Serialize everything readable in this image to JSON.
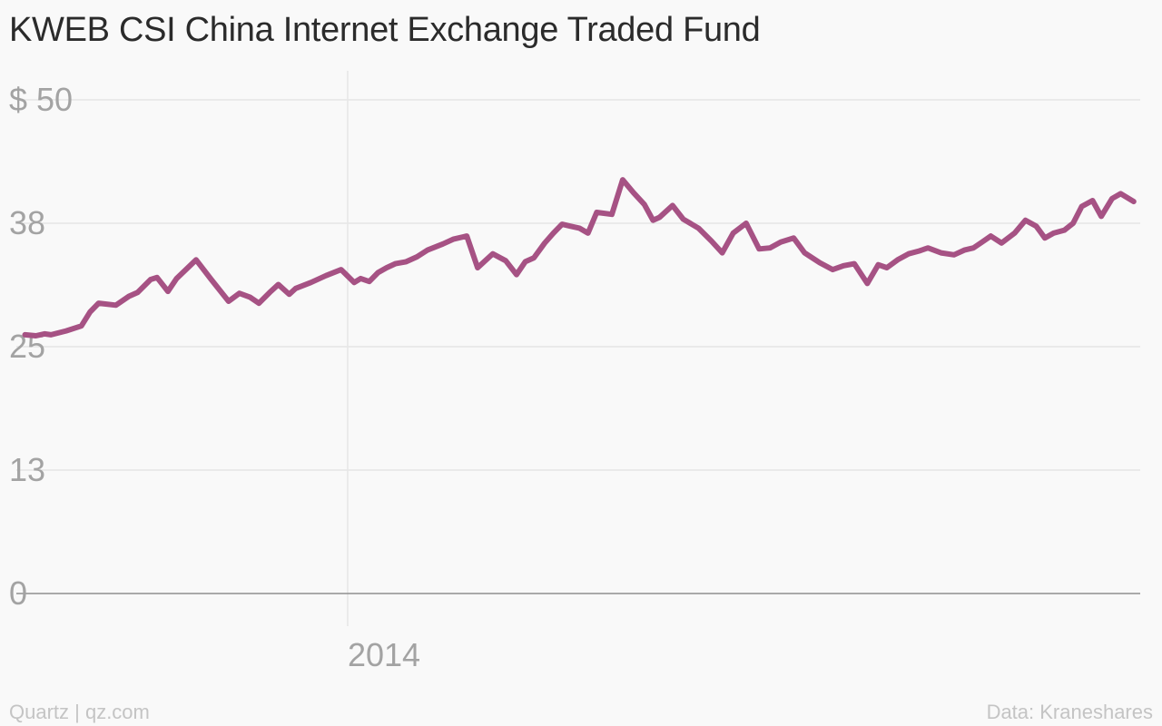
{
  "footer": {
    "left": "Quartz | qz.com",
    "right": "Data: Kraneshares"
  },
  "chart_data": {
    "type": "line",
    "title": "KWEB CSI China Internet Exchange Traded Fund",
    "xlabel": "",
    "ylabel": "",
    "ylim": [
      0,
      50
    ],
    "y_ticks": [
      {
        "value": 50,
        "label": "$ 50"
      },
      {
        "value": 37.5,
        "label": "38"
      },
      {
        "value": 25,
        "label": "25"
      },
      {
        "value": 12.5,
        "label": "13"
      },
      {
        "value": 0,
        "label": "0"
      }
    ],
    "x_ticks": [
      {
        "value": "2014-01-01",
        "label": "2014"
      }
    ],
    "xlim": [
      "2013-08-01",
      "2015-01-02"
    ],
    "grid": true,
    "series_color": "#a65284",
    "series": [
      {
        "name": "",
        "x": [
          "2013-08-05",
          "2013-08-10",
          "2013-08-14",
          "2013-08-17",
          "2013-08-24",
          "2013-08-31",
          "2013-09-04",
          "2013-09-08",
          "2013-09-16",
          "2013-09-22",
          "2013-09-26",
          "2013-10-02",
          "2013-10-05",
          "2013-10-10",
          "2013-10-14",
          "2013-10-23",
          "2013-10-30",
          "2013-11-07",
          "2013-11-12",
          "2013-11-17",
          "2013-11-21",
          "2013-11-26",
          "2013-11-30",
          "2013-12-05",
          "2013-12-08",
          "2013-12-15",
          "2013-12-22",
          "2013-12-29",
          "2014-01-04",
          "2014-01-07",
          "2014-01-11",
          "2014-01-15",
          "2014-01-19",
          "2014-01-23",
          "2014-01-28",
          "2014-02-02",
          "2014-02-07",
          "2014-02-14",
          "2014-02-19",
          "2014-02-25",
          "2014-03-02",
          "2014-03-09",
          "2014-03-15",
          "2014-03-20",
          "2014-03-24",
          "2014-03-28",
          "2014-04-02",
          "2014-04-06",
          "2014-04-10",
          "2014-04-14",
          "2014-04-18",
          "2014-04-22",
          "2014-04-26",
          "2014-05-03",
          "2014-05-08",
          "2014-05-13",
          "2014-05-18",
          "2014-05-22",
          "2014-05-25",
          "2014-05-31",
          "2014-06-05",
          "2014-06-12",
          "2014-06-18",
          "2014-06-23",
          "2014-06-28",
          "2014-07-04",
          "2014-07-10",
          "2014-07-15",
          "2014-07-20",
          "2014-07-26",
          "2014-07-31",
          "2014-08-07",
          "2014-08-13",
          "2014-08-18",
          "2014-08-23",
          "2014-08-29",
          "2014-09-03",
          "2014-09-07",
          "2014-09-12",
          "2014-09-17",
          "2014-09-22",
          "2014-09-26",
          "2014-10-02",
          "2014-10-08",
          "2014-10-13",
          "2014-10-17",
          "2014-10-21",
          "2014-10-25",
          "2014-10-30",
          "2014-11-05",
          "2014-11-10",
          "2014-11-15",
          "2014-11-19",
          "2014-11-23",
          "2014-11-28",
          "2014-12-02",
          "2014-12-06",
          "2014-12-11",
          "2014-12-15",
          "2014-12-20",
          "2014-12-24",
          "2014-12-30"
        ],
        "values": [
          26.2,
          26.1,
          26.3,
          26.2,
          26.6,
          27.1,
          28.5,
          29.4,
          29.2,
          30.1,
          30.5,
          31.8,
          32.0,
          30.6,
          31.9,
          33.8,
          31.8,
          29.6,
          30.4,
          30.0,
          29.4,
          30.5,
          31.3,
          30.3,
          30.9,
          31.5,
          32.2,
          32.8,
          31.5,
          31.9,
          31.6,
          32.5,
          33.0,
          33.4,
          33.6,
          34.1,
          34.8,
          35.4,
          35.9,
          36.2,
          33.0,
          34.4,
          33.7,
          32.3,
          33.6,
          34.0,
          35.5,
          36.5,
          37.4,
          37.2,
          37.0,
          36.5,
          38.6,
          38.4,
          41.9,
          40.6,
          39.4,
          37.8,
          38.1,
          39.3,
          37.9,
          37.0,
          35.7,
          34.5,
          36.5,
          37.5,
          34.9,
          35.0,
          35.6,
          36.0,
          34.5,
          33.5,
          32.8,
          33.2,
          33.4,
          31.4,
          33.3,
          33.0,
          33.8,
          34.4,
          34.7,
          35.0,
          34.5,
          34.3,
          34.8,
          35.0,
          35.6,
          36.2,
          35.5,
          36.5,
          37.8,
          37.2,
          36.0,
          36.5,
          36.8,
          37.5,
          39.2,
          39.8,
          38.2,
          40.0,
          40.5,
          39.7
        ]
      }
    ]
  }
}
